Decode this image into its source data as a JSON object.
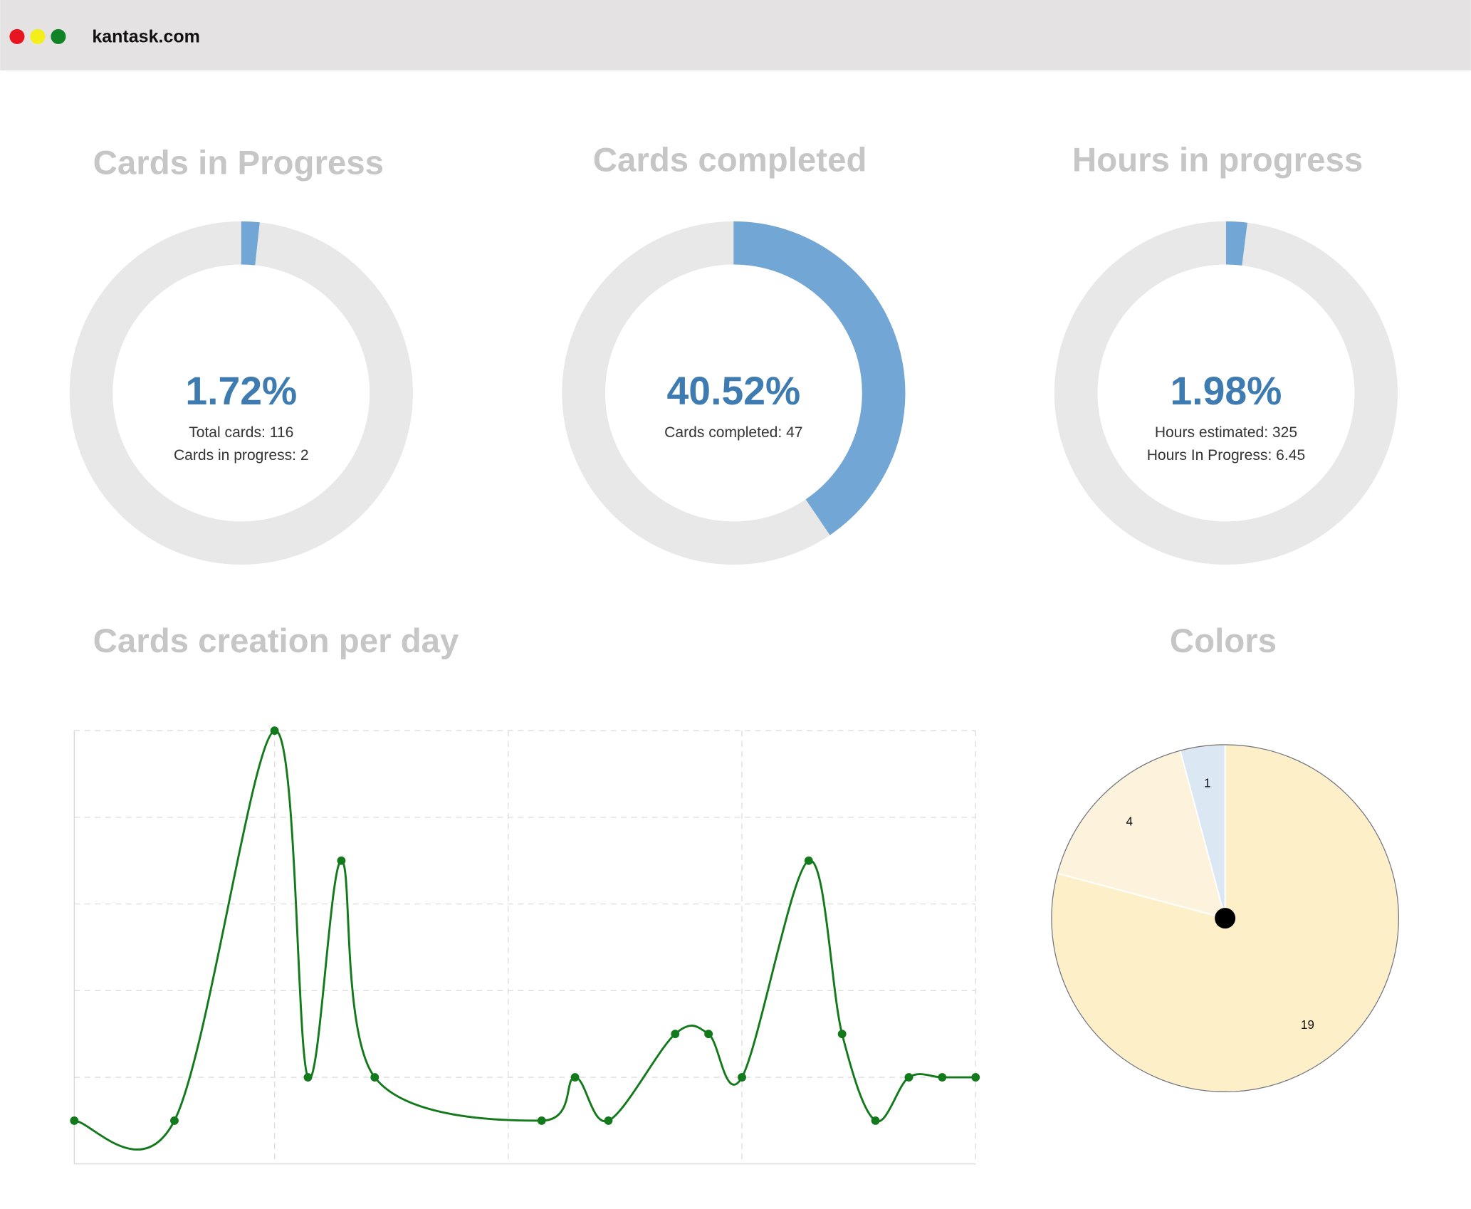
{
  "browser": {
    "url": "kantask.com"
  },
  "chart_data": [
    {
      "type": "donut",
      "title": "Cards in Progress",
      "value": 1.72,
      "value_label": "1.72%",
      "ylim": [
        0,
        100
      ],
      "color": "#72a6d4",
      "track_color": "#e8e8e8",
      "texts": [
        "Total cards: 116",
        "Cards in progress: 2"
      ]
    },
    {
      "type": "donut",
      "title": "Cards completed",
      "value": 40.52,
      "value_label": "40.52%",
      "ylim": [
        0,
        100
      ],
      "color": "#72a6d4",
      "track_color": "#e8e8e8",
      "texts": [
        "Cards completed: 47"
      ]
    },
    {
      "type": "donut",
      "title": "Hours in progress",
      "value": 1.98,
      "value_label": "1.98%",
      "ylim": [
        0,
        100
      ],
      "color": "#72a6d4",
      "track_color": "#e8e8e8",
      "texts": [
        "Hours estimated: 325",
        "Hours In Progress: 6.45"
      ]
    },
    {
      "type": "line",
      "title": "Cards creation per day",
      "color": "#137a1c",
      "x": [
        0,
        3,
        6,
        7,
        8,
        9,
        14,
        15,
        16,
        18,
        19,
        20,
        22,
        23,
        24,
        25,
        26,
        27
      ],
      "values": [
        0,
        0,
        9,
        1,
        6,
        1,
        0,
        1,
        0,
        2,
        2,
        1,
        6,
        2,
        0,
        1,
        1,
        1
      ],
      "xlim": [
        0,
        27
      ],
      "ylim": [
        -1,
        9
      ],
      "xticks": [
        6,
        13,
        20,
        27
      ],
      "yticks": [
        1,
        3,
        5,
        7,
        9
      ],
      "grid": true
    },
    {
      "type": "pie",
      "title": "Colors",
      "values": [
        19,
        4,
        1
      ],
      "colors": [
        "#fdf0c8",
        "#fdf3dd",
        "#dbe8f4"
      ]
    }
  ]
}
